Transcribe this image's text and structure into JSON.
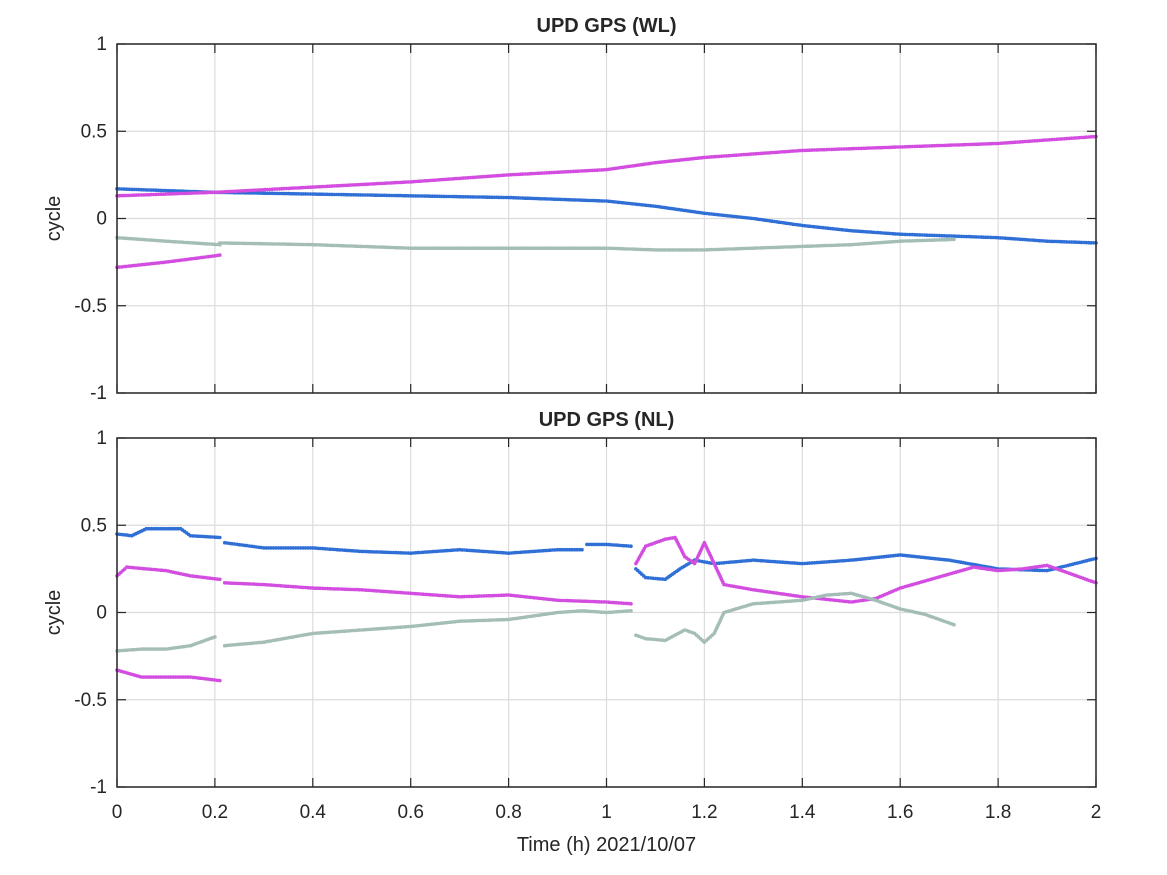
{
  "chart_data": [
    {
      "type": "scatter",
      "title": "UPD GPS (WL)",
      "xlabel": "",
      "ylabel": "cycle",
      "xlim": [
        0,
        2
      ],
      "ylim": [
        -1,
        1
      ],
      "grid": true,
      "xticks": [
        "0",
        "0.2",
        "0.4",
        "0.6",
        "0.8",
        "1",
        "1.2",
        "1.4",
        "1.6",
        "1.8",
        "2"
      ],
      "xtick_labels_visible": false,
      "yticks": [
        "-1",
        "-0.5",
        "0",
        "0.5",
        "1"
      ],
      "series": [
        {
          "color": "#2f6fd6",
          "segments": [
            [
              [
                0,
                0.17
              ],
              [
                0.1,
                0.16
              ],
              [
                0.2,
                0.15
              ],
              [
                0.4,
                0.14
              ],
              [
                0.6,
                0.13
              ],
              [
                0.8,
                0.12
              ],
              [
                1.0,
                0.1
              ],
              [
                1.1,
                0.07
              ],
              [
                1.2,
                0.03
              ],
              [
                1.3,
                0.0
              ],
              [
                1.4,
                -0.04
              ],
              [
                1.5,
                -0.07
              ],
              [
                1.6,
                -0.09
              ],
              [
                1.7,
                -0.1
              ],
              [
                1.8,
                -0.11
              ],
              [
                1.9,
                -0.13
              ],
              [
                2.0,
                -0.14
              ]
            ]
          ]
        },
        {
          "color": "#d24de0",
          "segments": [
            [
              [
                0,
                0.13
              ],
              [
                0.1,
                0.14
              ],
              [
                0.2,
                0.15
              ],
              [
                0.4,
                0.18
              ],
              [
                0.6,
                0.21
              ],
              [
                0.8,
                0.25
              ],
              [
                1.0,
                0.28
              ],
              [
                1.1,
                0.32
              ],
              [
                1.2,
                0.35
              ],
              [
                1.3,
                0.37
              ],
              [
                1.4,
                0.39
              ],
              [
                1.5,
                0.4
              ],
              [
                1.6,
                0.41
              ],
              [
                1.7,
                0.42
              ],
              [
                1.8,
                0.43
              ],
              [
                1.9,
                0.45
              ],
              [
                2.0,
                0.47
              ]
            ],
            [
              [
                0,
                -0.28
              ],
              [
                0.1,
                -0.25
              ],
              [
                0.21,
                -0.21
              ]
            ]
          ]
        },
        {
          "color": "#a4bdb7",
          "segments": [
            [
              [
                0,
                -0.11
              ],
              [
                0.1,
                -0.13
              ],
              [
                0.21,
                -0.15
              ]
            ],
            [
              [
                0.21,
                -0.14
              ],
              [
                0.4,
                -0.15
              ],
              [
                0.6,
                -0.17
              ],
              [
                0.8,
                -0.17
              ],
              [
                1.0,
                -0.17
              ],
              [
                1.1,
                -0.18
              ],
              [
                1.2,
                -0.18
              ],
              [
                1.3,
                -0.17
              ],
              [
                1.4,
                -0.16
              ],
              [
                1.5,
                -0.15
              ],
              [
                1.6,
                -0.13
              ],
              [
                1.71,
                -0.12
              ]
            ]
          ]
        }
      ]
    },
    {
      "type": "scatter",
      "title": "UPD GPS (NL)",
      "xlabel": "Time (h) 2021/10/07",
      "ylabel": "cycle",
      "xlim": [
        0,
        2
      ],
      "ylim": [
        -1,
        1
      ],
      "grid": true,
      "xticks": [
        "0",
        "0.2",
        "0.4",
        "0.6",
        "0.8",
        "1",
        "1.2",
        "1.4",
        "1.6",
        "1.8",
        "2"
      ],
      "xtick_labels_visible": true,
      "yticks": [
        "-1",
        "-0.5",
        "0",
        "0.5",
        "1"
      ],
      "series": [
        {
          "color": "#2f6fd6",
          "segments": [
            [
              [
                0,
                0.45
              ],
              [
                0.03,
                0.44
              ],
              [
                0.06,
                0.48
              ],
              [
                0.1,
                0.48
              ],
              [
                0.13,
                0.48
              ],
              [
                0.15,
                0.44
              ],
              [
                0.21,
                0.43
              ]
            ],
            [
              [
                0.22,
                0.4
              ],
              [
                0.3,
                0.37
              ],
              [
                0.4,
                0.37
              ],
              [
                0.5,
                0.35
              ],
              [
                0.6,
                0.34
              ],
              [
                0.7,
                0.36
              ],
              [
                0.8,
                0.34
              ],
              [
                0.9,
                0.36
              ],
              [
                0.95,
                0.36
              ]
            ],
            [
              [
                0.96,
                0.39
              ],
              [
                1.0,
                0.39
              ],
              [
                1.05,
                0.38
              ]
            ],
            [
              [
                1.06,
                0.25
              ],
              [
                1.08,
                0.2
              ],
              [
                1.12,
                0.19
              ],
              [
                1.15,
                0.25
              ],
              [
                1.18,
                0.3
              ],
              [
                1.22,
                0.28
              ],
              [
                1.3,
                0.3
              ],
              [
                1.4,
                0.28
              ],
              [
                1.5,
                0.3
              ],
              [
                1.6,
                0.33
              ],
              [
                1.7,
                0.3
              ],
              [
                1.8,
                0.25
              ],
              [
                1.9,
                0.24
              ],
              [
                2.0,
                0.31
              ]
            ]
          ]
        },
        {
          "color": "#d24de0",
          "segments": [
            [
              [
                0,
                0.21
              ],
              [
                0.02,
                0.26
              ],
              [
                0.1,
                0.24
              ],
              [
                0.15,
                0.21
              ],
              [
                0.21,
                0.19
              ]
            ],
            [
              [
                0.22,
                0.17
              ],
              [
                0.3,
                0.16
              ],
              [
                0.4,
                0.14
              ],
              [
                0.5,
                0.13
              ],
              [
                0.6,
                0.11
              ],
              [
                0.7,
                0.09
              ],
              [
                0.8,
                0.1
              ],
              [
                0.9,
                0.07
              ],
              [
                1.0,
                0.06
              ],
              [
                1.05,
                0.05
              ]
            ],
            [
              [
                1.06,
                0.28
              ],
              [
                1.08,
                0.38
              ],
              [
                1.12,
                0.42
              ],
              [
                1.14,
                0.43
              ],
              [
                1.16,
                0.32
              ],
              [
                1.18,
                0.28
              ],
              [
                1.2,
                0.4
              ],
              [
                1.22,
                0.28
              ],
              [
                1.24,
                0.16
              ],
              [
                1.3,
                0.13
              ],
              [
                1.4,
                0.09
              ],
              [
                1.5,
                0.06
              ],
              [
                1.55,
                0.08
              ],
              [
                1.6,
                0.14
              ],
              [
                1.7,
                0.22
              ],
              [
                1.75,
                0.26
              ],
              [
                1.8,
                0.24
              ],
              [
                1.85,
                0.25
              ],
              [
                1.9,
                0.27
              ],
              [
                1.95,
                0.22
              ],
              [
                2.0,
                0.17
              ]
            ],
            [
              [
                0,
                -0.33
              ],
              [
                0.05,
                -0.37
              ],
              [
                0.1,
                -0.37
              ],
              [
                0.15,
                -0.37
              ],
              [
                0.21,
                -0.39
              ]
            ]
          ]
        },
        {
          "color": "#a4bdb7",
          "segments": [
            [
              [
                0,
                -0.22
              ],
              [
                0.05,
                -0.21
              ],
              [
                0.1,
                -0.21
              ],
              [
                0.15,
                -0.19
              ],
              [
                0.2,
                -0.14
              ]
            ],
            [
              [
                0.22,
                -0.19
              ],
              [
                0.3,
                -0.17
              ],
              [
                0.4,
                -0.12
              ],
              [
                0.5,
                -0.1
              ],
              [
                0.6,
                -0.08
              ],
              [
                0.7,
                -0.05
              ],
              [
                0.8,
                -0.04
              ],
              [
                0.9,
                0.0
              ],
              [
                0.95,
                0.01
              ],
              [
                1.0,
                0.0
              ],
              [
                1.05,
                0.01
              ]
            ],
            [
              [
                1.06,
                -0.13
              ],
              [
                1.08,
                -0.15
              ],
              [
                1.12,
                -0.16
              ],
              [
                1.16,
                -0.1
              ],
              [
                1.18,
                -0.12
              ],
              [
                1.2,
                -0.17
              ],
              [
                1.22,
                -0.12
              ],
              [
                1.24,
                0.0
              ],
              [
                1.3,
                0.05
              ],
              [
                1.4,
                0.07
              ],
              [
                1.45,
                0.1
              ],
              [
                1.5,
                0.11
              ],
              [
                1.55,
                0.07
              ],
              [
                1.6,
                0.02
              ],
              [
                1.65,
                -0.01
              ],
              [
                1.71,
                -0.07
              ]
            ]
          ]
        }
      ]
    }
  ]
}
